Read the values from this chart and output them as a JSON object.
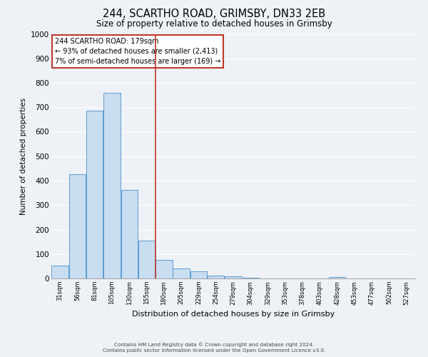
{
  "title": "244, SCARTHO ROAD, GRIMSBY, DN33 2EB",
  "subtitle": "Size of property relative to detached houses in Grimsby",
  "xlabel": "Distribution of detached houses by size in Grimsby",
  "ylabel": "Number of detached properties",
  "bin_labels": [
    "31sqm",
    "56sqm",
    "81sqm",
    "105sqm",
    "130sqm",
    "155sqm",
    "180sqm",
    "205sqm",
    "229sqm",
    "254sqm",
    "279sqm",
    "304sqm",
    "329sqm",
    "353sqm",
    "378sqm",
    "403sqm",
    "428sqm",
    "453sqm",
    "477sqm",
    "502sqm",
    "527sqm"
  ],
  "bar_heights": [
    52,
    425,
    685,
    758,
    363,
    155,
    75,
    40,
    28,
    13,
    8,
    3,
    0,
    0,
    0,
    0,
    7,
    0,
    0,
    0,
    0
  ],
  "bar_color": "#c9ddf0",
  "bar_edge_color": "#5b9bd5",
  "bar_edge_width": 0.7,
  "vline_index": 6,
  "vline_color": "#c0392b",
  "ylim": [
    0,
    1000
  ],
  "yticks": [
    0,
    100,
    200,
    300,
    400,
    500,
    600,
    700,
    800,
    900,
    1000
  ],
  "annotation_title": "244 SCARTHO ROAD: 179sqm",
  "annotation_line1": "← 93% of detached houses are smaller (2,413)",
  "annotation_line2": "7% of semi-detached houses are larger (169) →",
  "annotation_box_color": "#c0392b",
  "background_color": "#eef2f7",
  "grid_color": "#ffffff",
  "footer1": "Contains HM Land Registry data © Crown copyright and database right 2024.",
  "footer2": "Contains public sector information licensed under the Open Government Licence v3.0."
}
